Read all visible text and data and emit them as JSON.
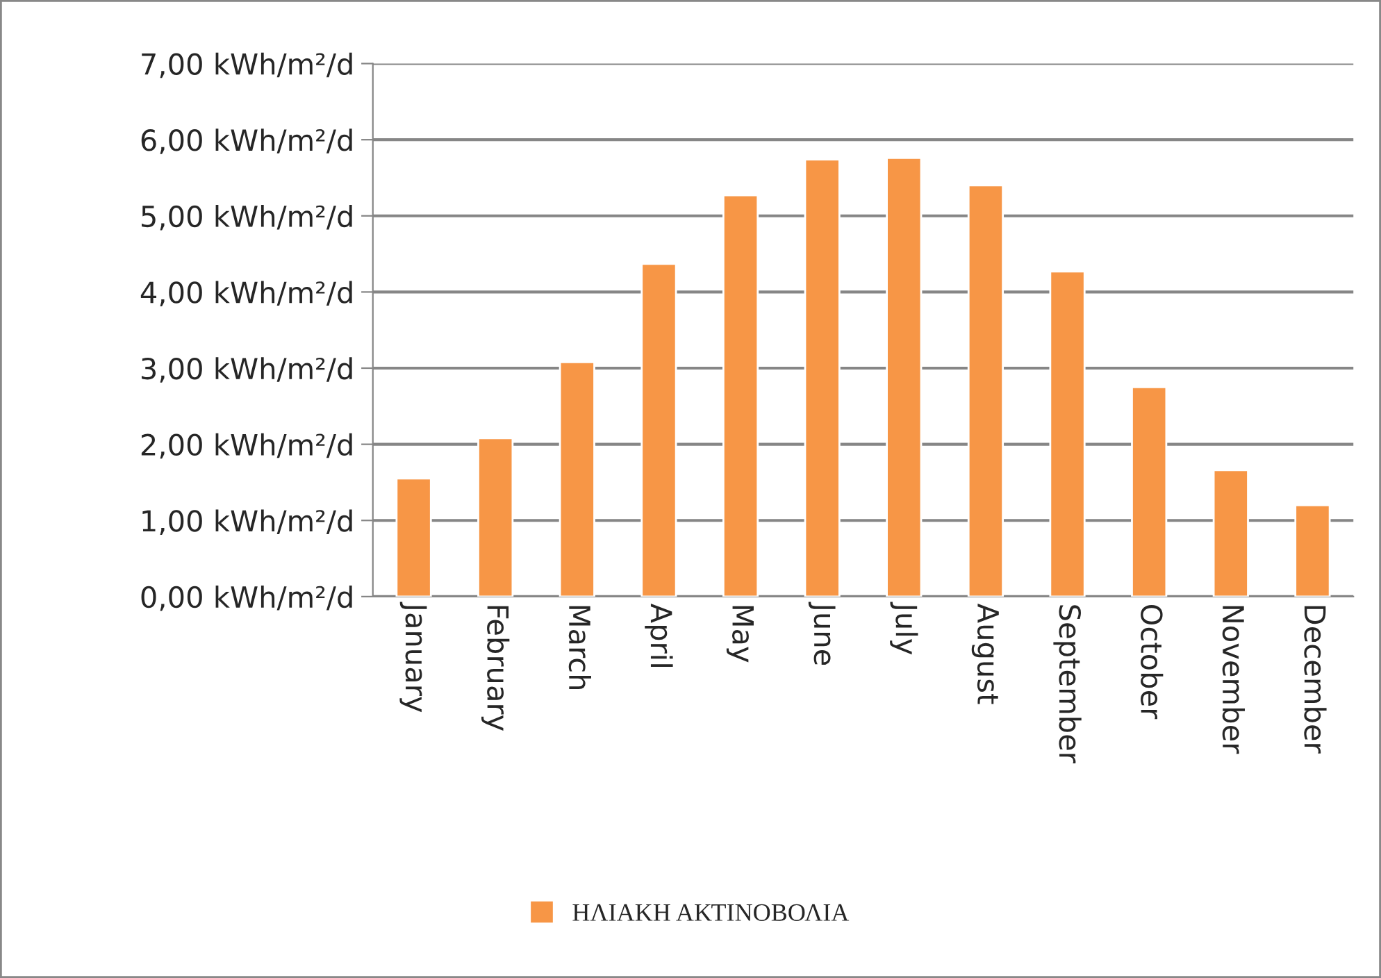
{
  "chart_data": {
    "type": "bar",
    "categories": [
      "January",
      "February",
      "March",
      "April",
      "May",
      "June",
      "July",
      "August",
      "September",
      "October",
      "November",
      "December"
    ],
    "series": [
      {
        "name": "ΗΛΙΑΚΗ ΑΚΤΙΝΟΒΟΛΙΑ",
        "color": "#f79646",
        "values": [
          1.55,
          2.08,
          3.08,
          4.37,
          5.27,
          5.74,
          5.76,
          5.4,
          4.27,
          2.75,
          1.66,
          1.2
        ]
      }
    ],
    "ylim": [
      0,
      7
    ],
    "yticks": [
      {
        "value": 0,
        "label": "0,00 kWh/m²/d"
      },
      {
        "value": 1,
        "label": "1,00 kWh/m²/d"
      },
      {
        "value": 2,
        "label": "2,00 kWh/m²/d"
      },
      {
        "value": 3,
        "label": "3,00 kWh/m²/d"
      },
      {
        "value": 4,
        "label": "4,00 kWh/m²/d"
      },
      {
        "value": 5,
        "label": "5,00 kWh/m²/d"
      },
      {
        "value": 6,
        "label": "6,00 kWh/m²/d"
      },
      {
        "value": 7,
        "label": "7,00 kWh/m²/d"
      }
    ],
    "grid": "y",
    "legend": "bottom"
  }
}
